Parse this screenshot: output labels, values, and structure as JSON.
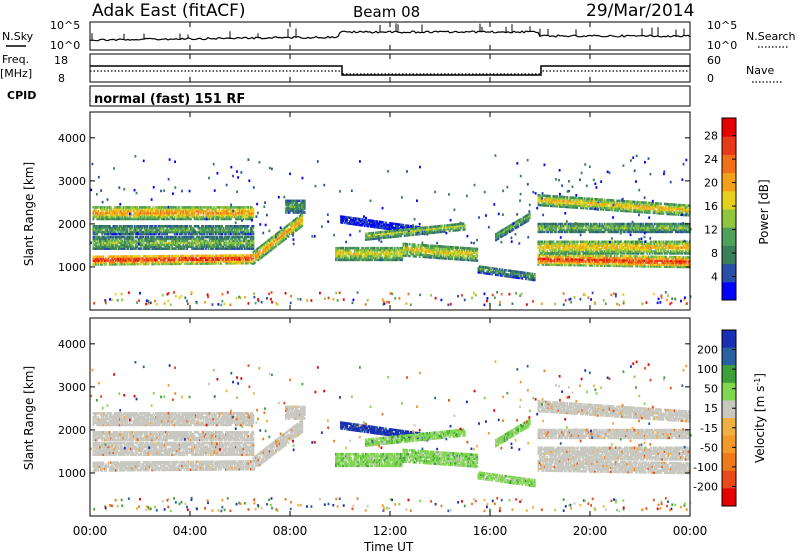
{
  "header": {
    "station": "Adak East (fitACF)",
    "beam": "Beam 08",
    "date": "29/Mar/2014"
  },
  "panels": {
    "nsky": {
      "left_label": "N.Sky",
      "right_label": "N.Search",
      "left_ticks": [
        "10^5",
        "10^0"
      ],
      "right_ticks": [
        "10^5",
        "10^0"
      ]
    },
    "freq": {
      "left_label_1": "Freq.",
      "left_label_2": "[MHz]",
      "left_ticks": [
        "18",
        "8"
      ],
      "right_label": "Nave",
      "right_ticks": [
        "60",
        "0"
      ]
    },
    "cpid": {
      "label": "CPID",
      "mode_text": "normal (fast) 151 RF"
    }
  },
  "colors": {
    "power_scale": [
      "#0000ff",
      "#2a4fa8",
      "#3a7f5a",
      "#4fa05a",
      "#8fc63f",
      "#e6d21c",
      "#f5a01a",
      "#f26f1a",
      "#e83a1a",
      "#e60000"
    ],
    "velocity_scale": [
      "#1a2fb4",
      "#2a5fa0",
      "#3fa03a",
      "#7fd64f",
      "#c8c8c0",
      "#f0b040",
      "#f59a2a",
      "#f07a1a",
      "#e84a1a",
      "#e60000"
    ],
    "ground": "#c8c8c0"
  },
  "chart_data": [
    {
      "type": "heatmap",
      "title": "",
      "ylabel": "Slant Range [km]",
      "ylim": [
        0,
        4600
      ],
      "yticks": [
        "1000",
        "2000",
        "3000",
        "4000"
      ],
      "xlim_hours": [
        0,
        24
      ],
      "colorbar": {
        "label": "Power [dB]",
        "ticks": [
          "4",
          "8",
          "12",
          "16",
          "20",
          "24",
          "28"
        ],
        "range": [
          0,
          31
        ]
      }
    },
    {
      "type": "heatmap",
      "title": "",
      "ylabel": "Slant Range [km]",
      "ylim": [
        0,
        4600
      ],
      "yticks": [
        "1000",
        "2000",
        "3000",
        "4000"
      ],
      "xlim_hours": [
        0,
        24
      ],
      "colorbar": {
        "label": "Velocity [m s^-1]",
        "ticks": [
          "200",
          "100",
          "50",
          "15",
          "-15",
          "-50",
          "-100",
          "-200"
        ]
      }
    }
  ],
  "time_axis": {
    "ticks": [
      "00:00",
      "04:00",
      "08:00",
      "12:00",
      "16:00",
      "20:00",
      "00:00"
    ],
    "label": "Time UT"
  }
}
